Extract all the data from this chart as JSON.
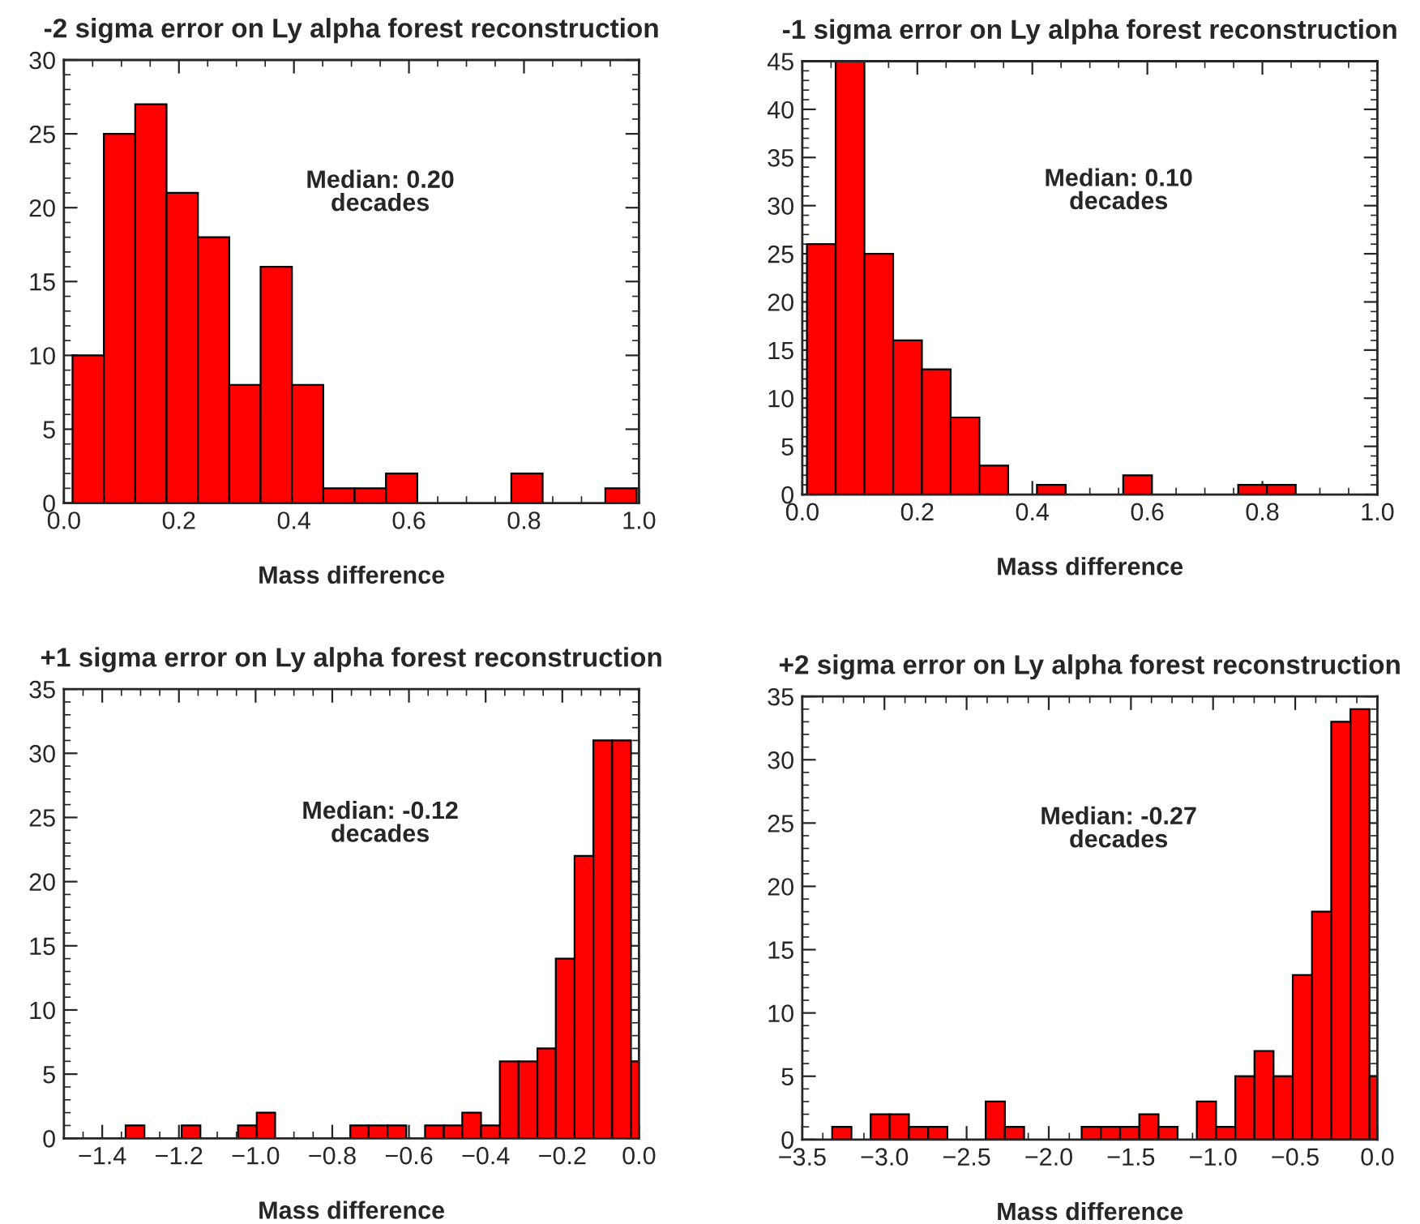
{
  "chart_data": [
    {
      "type": "histogram",
      "title": "-2 sigma error on Ly alpha forest reconstruction",
      "xlabel": "Mass difference",
      "annotations": [
        "Median: 0.20\ndecades"
      ],
      "color": "#ff0000",
      "bins": [
        0.015,
        0.0695,
        0.124,
        0.1785,
        0.233,
        0.2875,
        0.342,
        0.3965,
        0.451,
        0.5055,
        0.56,
        0.6145,
        0.778,
        0.8325,
        0.9415,
        0.996
      ],
      "values": [
        10,
        25,
        27,
        21,
        18,
        8,
        16,
        8,
        1,
        1,
        2,
        0,
        2,
        0,
        1
      ],
      "xlim": [
        0,
        1
      ],
      "xticks": [
        {
          "value": 0,
          "label": "0.0"
        },
        {
          "value": 0.2,
          "label": "0.2"
        },
        {
          "value": 0.4,
          "label": "0.4"
        },
        {
          "value": 0.6,
          "label": "0.6"
        },
        {
          "value": 0.8,
          "label": "0.8"
        },
        {
          "value": 1,
          "label": "1.0"
        }
      ],
      "ylim": [
        0,
        30
      ],
      "yticks": [
        0,
        5,
        10,
        15,
        20,
        25,
        30
      ]
    },
    {
      "type": "histogram",
      "title": "-1 sigma error on Ly alpha forest reconstruction",
      "xlabel": "Mass difference",
      "annotations": [
        "Median: 0.10\ndecades"
      ],
      "color": "#ff0000",
      "bins": [
        0.008,
        0.058,
        0.108,
        0.158,
        0.208,
        0.258,
        0.308,
        0.358,
        0.408,
        0.458,
        0.558,
        0.608,
        0.758,
        0.808,
        0.858
      ],
      "values": [
        26,
        45,
        25,
        16,
        13,
        8,
        3,
        0,
        1,
        0,
        2,
        0,
        1,
        1
      ],
      "xlim": [
        0,
        1
      ],
      "xticks": [
        {
          "value": 0,
          "label": "0.0"
        },
        {
          "value": 0.2,
          "label": "0.2"
        },
        {
          "value": 0.4,
          "label": "0.4"
        },
        {
          "value": 0.6,
          "label": "0.6"
        },
        {
          "value": 0.8,
          "label": "0.8"
        },
        {
          "value": 1,
          "label": "1.0"
        }
      ],
      "ylim": [
        0,
        45
      ],
      "yticks": [
        0,
        5,
        10,
        15,
        20,
        25,
        30,
        35,
        40,
        45
      ]
    },
    {
      "type": "histogram",
      "title": "+1 sigma error on Ly alpha forest reconstruction",
      "xlabel": "Mass difference",
      "annotations": [
        "Median: -0.12\ndecades"
      ],
      "color": "#ff0000",
      "bins": [
        -1.339,
        -1.29,
        -1.193,
        -1.144,
        -1.046,
        -0.997,
        -0.949,
        -0.753,
        -0.705,
        -0.656,
        -0.607,
        -0.558,
        -0.509,
        -0.461,
        -0.412,
        -0.363,
        -0.314,
        -0.265,
        -0.217,
        -0.168,
        -0.119,
        -0.07,
        -0.021,
        0
      ],
      "values": [
        1,
        0,
        1,
        0,
        1,
        2,
        0,
        1,
        1,
        1,
        0,
        1,
        1,
        2,
        1,
        6,
        6,
        7,
        14,
        22,
        31,
        31,
        6
      ],
      "xlim": [
        -1.5,
        0
      ],
      "xticks": [
        {
          "value": -1.4,
          "label": "−1.4"
        },
        {
          "value": -1.2,
          "label": "−1.2"
        },
        {
          "value": -1,
          "label": "−1.0"
        },
        {
          "value": -0.8,
          "label": "−0.8"
        },
        {
          "value": -0.6,
          "label": "−0.6"
        },
        {
          "value": -0.4,
          "label": "−0.4"
        },
        {
          "value": -0.2,
          "label": "−0.2"
        },
        {
          "value": 0,
          "label": "0.0"
        }
      ],
      "ylim": [
        0,
        35
      ],
      "yticks": [
        0,
        5,
        10,
        15,
        20,
        25,
        30,
        35
      ]
    },
    {
      "type": "histogram",
      "title": "+2 sigma error on Ly alpha forest reconstruction",
      "xlabel": "Mass difference",
      "annotations": [
        "Median: -0.27\ndecades"
      ],
      "color": "#ff0000",
      "bins": [
        -3.318,
        -3.201,
        -3.084,
        -2.968,
        -2.851,
        -2.734,
        -2.617,
        -2.384,
        -2.267,
        -2.15,
        -1.8,
        -1.683,
        -1.566,
        -1.449,
        -1.332,
        -1.216,
        -1.099,
        -0.982,
        -0.865,
        -0.748,
        -0.632,
        -0.515,
        -0.398,
        -0.281,
        -0.164,
        -0.048,
        0
      ],
      "values": [
        1,
        0,
        2,
        2,
        1,
        1,
        0,
        3,
        1,
        0,
        1,
        1,
        1,
        2,
        1,
        0,
        3,
        1,
        5,
        7,
        5,
        13,
        18,
        33,
        34,
        5
      ],
      "xlim": [
        -3.5,
        0
      ],
      "xticks": [
        {
          "value": -3.5,
          "label": "−3.5"
        },
        {
          "value": -3,
          "label": "−3.0"
        },
        {
          "value": -2.5,
          "label": "−2.5"
        },
        {
          "value": -2,
          "label": "−2.0"
        },
        {
          "value": -1.5,
          "label": "−1.5"
        },
        {
          "value": -1,
          "label": "−1.0"
        },
        {
          "value": -0.5,
          "label": "−0.5"
        },
        {
          "value": 0,
          "label": "0.0"
        }
      ],
      "ylim": [
        0,
        35
      ],
      "yticks": [
        0,
        5,
        10,
        15,
        20,
        25,
        30,
        35
      ]
    }
  ]
}
